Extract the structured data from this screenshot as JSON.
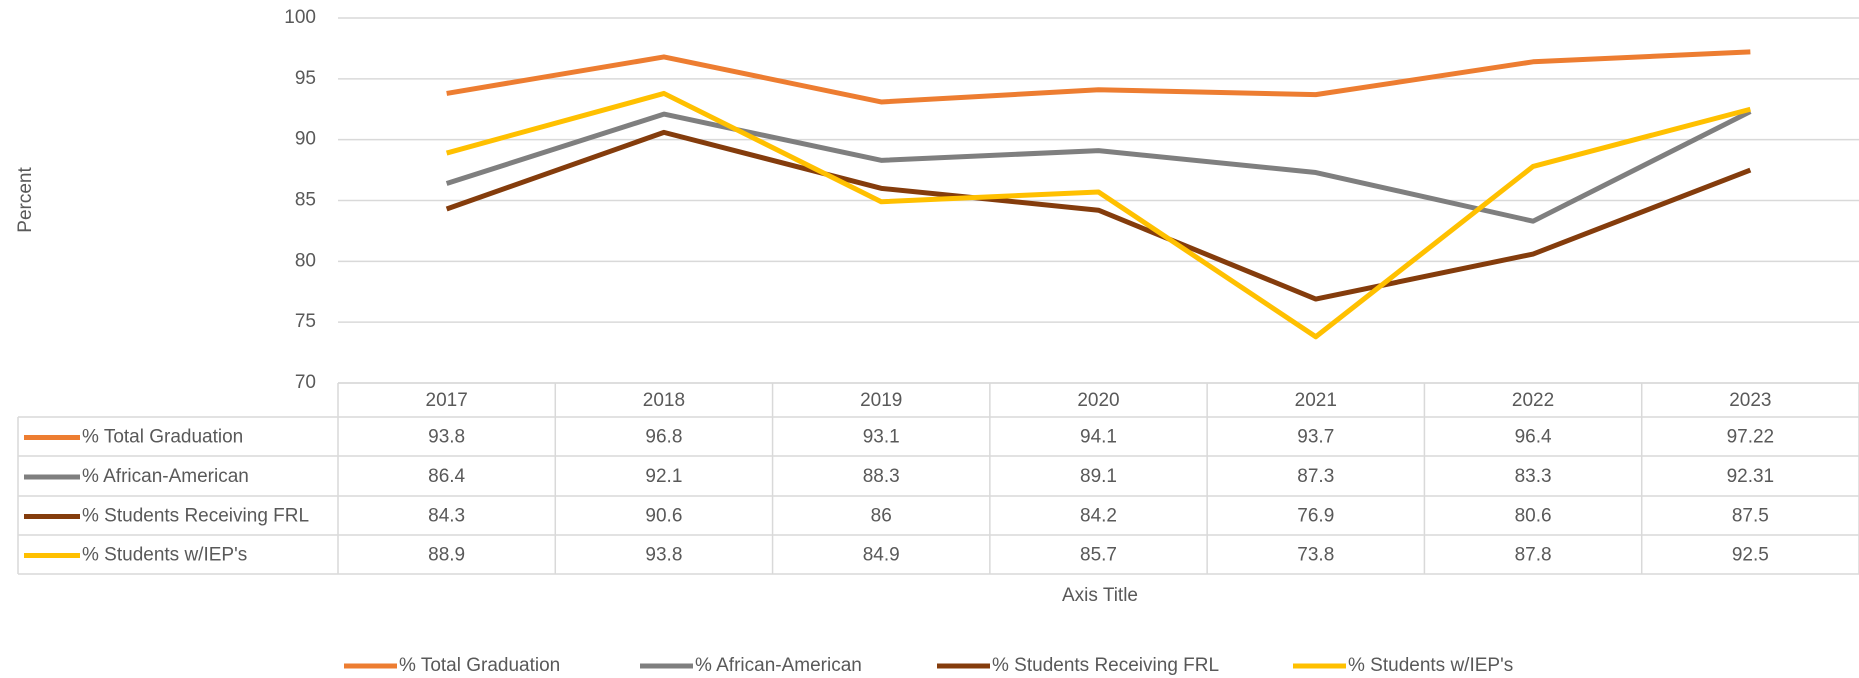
{
  "chart_data": {
    "type": "line",
    "categories": [
      "2017",
      "2018",
      "2019",
      "2020",
      "2021",
      "2022",
      "2023"
    ],
    "series": [
      {
        "name": "% Total Graduation",
        "color": "#ed7d31",
        "values": [
          93.8,
          96.8,
          93.1,
          94.1,
          93.7,
          96.4,
          97.22
        ]
      },
      {
        "name": "% African-American",
        "color": "#7f7f7f",
        "values": [
          86.4,
          92.1,
          88.3,
          89.1,
          87.3,
          83.3,
          92.31
        ]
      },
      {
        "name": "% Students Receiving FRL",
        "color": "#843c0c",
        "values": [
          84.3,
          90.6,
          86,
          84.2,
          76.9,
          80.6,
          87.5
        ]
      },
      {
        "name": "% Students w/IEP's",
        "color": "#ffc000",
        "values": [
          88.9,
          93.8,
          84.9,
          85.7,
          73.8,
          87.8,
          92.5
        ]
      }
    ],
    "ylim": [
      70,
      100
    ],
    "yticks": [
      70,
      75,
      80,
      85,
      90,
      95,
      100
    ],
    "grid": true,
    "y_axis_label": "Percent",
    "x_axis_label": "Axis Title",
    "legend": "bottom"
  }
}
